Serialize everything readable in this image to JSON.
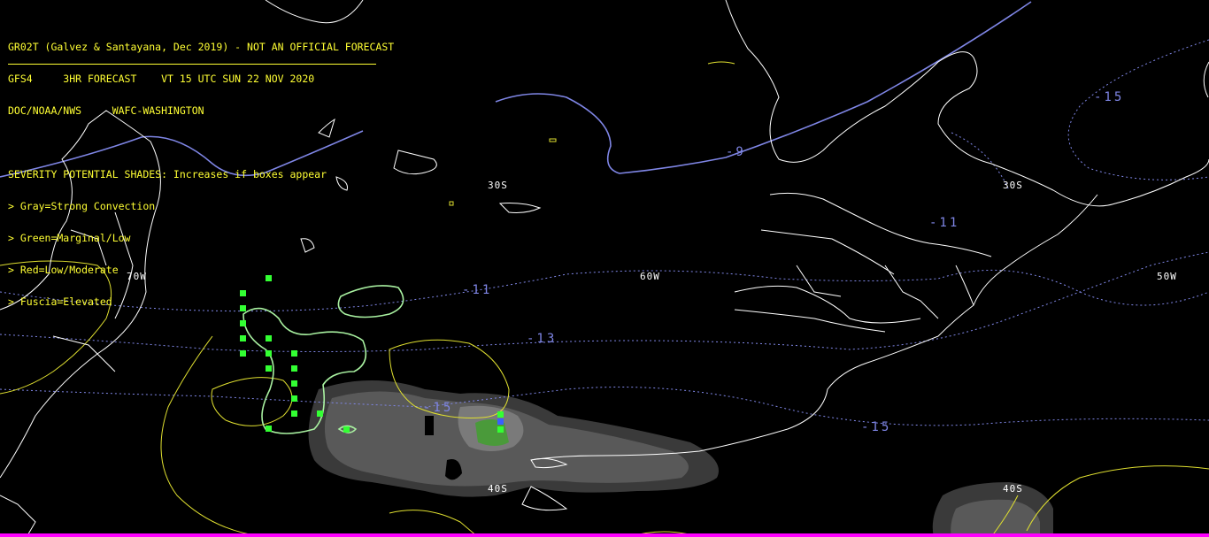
{
  "header": {
    "lines": [
      "GR02T (Galvez & Santayana, Dec 2019) - NOT AN OFFICIAL FORECAST",
      "GFS4     3HR FORECAST    VT 15 UTC SUN 22 NOV 2020",
      "DOC/NOAA/NWS     WAFC-WASHINGTON"
    ]
  },
  "legend": {
    "title": "SEVERITY POTENTIAL SHADES: Increases if boxes appear",
    "items": [
      "> Gray=Strong Convection",
      "> Green=Marginal/Low",
      "> Red=Low/Moderate",
      "> Fuscia=Elevated"
    ]
  },
  "grid_labels": {
    "lat_305_left": "30S",
    "lat_305_right": "30S",
    "lat_405_left": "40S",
    "lat_405_right": "40S",
    "lon_70w": "70W",
    "lon_60w": "60W",
    "lon_50w": "50W"
  },
  "contour_labels": {
    "m9": "-9",
    "m11_center": "-11",
    "m11_right": "-11",
    "m13": "-13",
    "m15_center": "-15",
    "m15_right": "-15",
    "m15_top": "-15"
  },
  "colors": {
    "background": "#000000",
    "coastline": "#ffffff",
    "temperature_contour": "#7f86e6",
    "severity_contour": "#ffff33",
    "green_shade": "#4a9a3a",
    "gray_shade": "#5a5a5a",
    "box_green": "#33ff33",
    "accent_bar": "#ff00ff"
  }
}
